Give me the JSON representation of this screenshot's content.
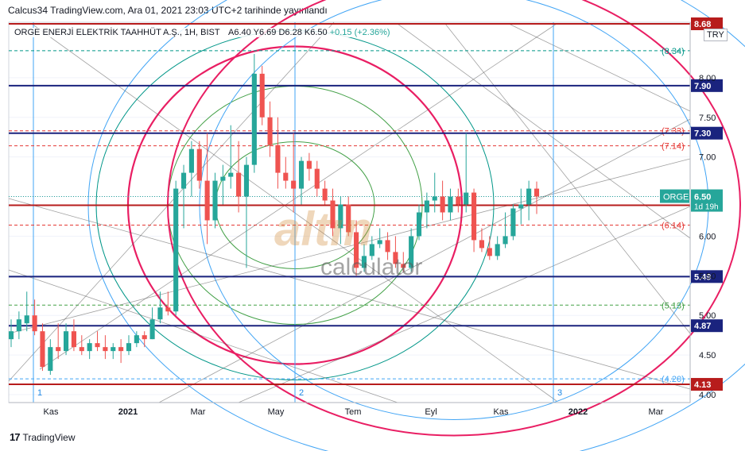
{
  "header": {
    "published": "Calcus34 TradingView.com, Ara 01, 2021 23:03 UTC+2 tarihinde yayınlandı"
  },
  "symbol_bar": {
    "name": "ORGE ENERJİ ELEKTRİK TAAHHÜT A.Ş., 1H, BIST",
    "open": "A6.40",
    "high": "Y6.69",
    "low": "D6.28",
    "close": "K6.50",
    "change": "+0.15 (+2.36%)"
  },
  "currency": "TRY",
  "watermark": {
    "brand": "altın",
    "sub": "calculator"
  },
  "footer": {
    "logo": "17",
    "brand": "TradingView"
  },
  "colors": {
    "up": "#26a69a",
    "down": "#ef5350",
    "red_line": "#b71c1c",
    "navy_line": "#1a237e",
    "ellipse_red": "#e91e63",
    "ellipse_green": "#43a047",
    "ellipse_teal": "#009688",
    "ellipse_blue": "#42a5f5"
  },
  "chart_data": {
    "type": "candlestick",
    "symbol": "ORGE",
    "y_axis_ticks": [
      4.0,
      4.5,
      5.0,
      5.5,
      6.0,
      6.5,
      7.0,
      7.5,
      8.0
    ],
    "y_axis_labels": [
      "4.00",
      "4.50",
      "5.00",
      "5.50",
      "6.00",
      "6.50",
      "7.00",
      "7.50",
      "8.00"
    ],
    "ylim": [
      3.9,
      8.7
    ],
    "x_axis_labels": [
      "Kas",
      "2021",
      "Mar",
      "May",
      "Tem",
      "Eyl",
      "Kas",
      "2022",
      "Mar"
    ],
    "last_price": {
      "label": "ORGE",
      "value": "6.50",
      "countdown": "1d 19h"
    },
    "horizontal_levels": [
      {
        "value": 8.68,
        "label": "8.68",
        "style": "solid",
        "color": "red"
      },
      {
        "value": 7.9,
        "label": "7.90",
        "style": "solid",
        "color": "navy"
      },
      {
        "value": 7.3,
        "label": "7.30",
        "style": "solid",
        "color": "navy"
      },
      {
        "value": 6.39,
        "label": "6.39",
        "style": "solid",
        "color": "red"
      },
      {
        "value": 5.49,
        "label": "5.49",
        "style": "solid",
        "color": "navy"
      },
      {
        "value": 4.87,
        "label": "4.87",
        "style": "solid",
        "color": "navy"
      },
      {
        "value": 4.13,
        "label": "4.13",
        "style": "solid",
        "color": "red"
      }
    ],
    "fib_levels": [
      {
        "value": 8.34,
        "label": "(8.34)",
        "color": "teal"
      },
      {
        "value": 7.33,
        "label": "(7.33)",
        "color": "red"
      },
      {
        "value": 7.14,
        "label": "(7.14)",
        "color": "red"
      },
      {
        "value": 6.14,
        "label": "(6.14)",
        "color": "red"
      },
      {
        "value": 5.13,
        "label": "(5.13)",
        "color": "green"
      },
      {
        "value": 4.2,
        "label": "(4.20)",
        "color": "blue"
      }
    ],
    "vertical_markers": [
      "1",
      "2",
      "3"
    ],
    "candles": [
      {
        "o": 4.7,
        "h": 4.95,
        "l": 4.6,
        "c": 4.8
      },
      {
        "o": 4.8,
        "h": 5.05,
        "l": 4.7,
        "c": 4.95
      },
      {
        "o": 4.9,
        "h": 5.3,
        "l": 4.8,
        "c": 5.0
      },
      {
        "o": 5.0,
        "h": 5.2,
        "l": 4.75,
        "c": 4.8
      },
      {
        "o": 4.8,
        "h": 4.9,
        "l": 4.3,
        "c": 4.35
      },
      {
        "o": 4.3,
        "h": 4.7,
        "l": 4.25,
        "c": 4.6
      },
      {
        "o": 4.6,
        "h": 4.9,
        "l": 4.45,
        "c": 4.55
      },
      {
        "o": 4.55,
        "h": 4.9,
        "l": 4.5,
        "c": 4.8
      },
      {
        "o": 4.8,
        "h": 4.95,
        "l": 4.55,
        "c": 4.6
      },
      {
        "o": 4.6,
        "h": 4.75,
        "l": 4.5,
        "c": 4.55
      },
      {
        "o": 4.55,
        "h": 4.7,
        "l": 4.45,
        "c": 4.65
      },
      {
        "o": 4.65,
        "h": 4.8,
        "l": 4.55,
        "c": 4.6
      },
      {
        "o": 4.6,
        "h": 4.75,
        "l": 4.45,
        "c": 4.55
      },
      {
        "o": 4.55,
        "h": 4.65,
        "l": 4.45,
        "c": 4.6
      },
      {
        "o": 4.6,
        "h": 4.7,
        "l": 4.4,
        "c": 4.55
      },
      {
        "o": 4.55,
        "h": 4.75,
        "l": 4.5,
        "c": 4.65
      },
      {
        "o": 4.65,
        "h": 4.8,
        "l": 4.6,
        "c": 4.75
      },
      {
        "o": 4.75,
        "h": 4.8,
        "l": 4.6,
        "c": 4.7
      },
      {
        "o": 4.7,
        "h": 5.1,
        "l": 4.7,
        "c": 4.95
      },
      {
        "o": 4.95,
        "h": 5.3,
        "l": 4.9,
        "c": 5.1
      },
      {
        "o": 5.1,
        "h": 5.3,
        "l": 5.0,
        "c": 5.05
      },
      {
        "o": 5.05,
        "h": 6.7,
        "l": 5.0,
        "c": 6.6
      },
      {
        "o": 6.6,
        "h": 6.9,
        "l": 6.1,
        "c": 6.8
      },
      {
        "o": 6.8,
        "h": 7.2,
        "l": 6.5,
        "c": 7.1
      },
      {
        "o": 7.1,
        "h": 7.2,
        "l": 6.6,
        "c": 6.7
      },
      {
        "o": 6.7,
        "h": 7.3,
        "l": 5.9,
        "c": 6.2
      },
      {
        "o": 6.2,
        "h": 6.8,
        "l": 6.1,
        "c": 6.7
      },
      {
        "o": 6.7,
        "h": 6.9,
        "l": 6.4,
        "c": 6.75
      },
      {
        "o": 6.75,
        "h": 7.4,
        "l": 6.6,
        "c": 6.8
      },
      {
        "o": 6.8,
        "h": 7.2,
        "l": 6.3,
        "c": 6.5
      },
      {
        "o": 6.5,
        "h": 7.0,
        "l": 5.6,
        "c": 6.9
      },
      {
        "o": 6.9,
        "h": 8.3,
        "l": 6.8,
        "c": 8.05
      },
      {
        "o": 8.05,
        "h": 8.15,
        "l": 7.4,
        "c": 7.5
      },
      {
        "o": 7.5,
        "h": 7.7,
        "l": 7.0,
        "c": 7.15
      },
      {
        "o": 7.15,
        "h": 7.5,
        "l": 6.6,
        "c": 6.8
      },
      {
        "o": 6.8,
        "h": 7.0,
        "l": 6.6,
        "c": 6.7
      },
      {
        "o": 6.7,
        "h": 7.3,
        "l": 6.3,
        "c": 6.6
      },
      {
        "o": 6.6,
        "h": 7.0,
        "l": 6.4,
        "c": 6.95
      },
      {
        "o": 6.95,
        "h": 7.05,
        "l": 6.7,
        "c": 6.85
      },
      {
        "o": 6.85,
        "h": 6.95,
        "l": 6.5,
        "c": 6.6
      },
      {
        "o": 6.6,
        "h": 6.7,
        "l": 6.4,
        "c": 6.45
      },
      {
        "o": 6.45,
        "h": 6.6,
        "l": 6.0,
        "c": 6.1
      },
      {
        "o": 6.1,
        "h": 6.5,
        "l": 5.9,
        "c": 6.4
      },
      {
        "o": 6.4,
        "h": 6.5,
        "l": 6.0,
        "c": 6.05
      },
      {
        "o": 6.05,
        "h": 6.2,
        "l": 5.5,
        "c": 5.6
      },
      {
        "o": 5.6,
        "h": 5.9,
        "l": 5.55,
        "c": 5.75
      },
      {
        "o": 5.75,
        "h": 6.0,
        "l": 5.7,
        "c": 5.9
      },
      {
        "o": 5.9,
        "h": 6.1,
        "l": 5.85,
        "c": 5.95
      },
      {
        "o": 5.95,
        "h": 6.05,
        "l": 5.7,
        "c": 5.8
      },
      {
        "o": 5.8,
        "h": 6.0,
        "l": 5.6,
        "c": 5.65
      },
      {
        "o": 5.65,
        "h": 5.8,
        "l": 5.55,
        "c": 5.6
      },
      {
        "o": 5.6,
        "h": 6.1,
        "l": 5.55,
        "c": 6.0
      },
      {
        "o": 6.0,
        "h": 6.4,
        "l": 5.95,
        "c": 6.3
      },
      {
        "o": 6.3,
        "h": 6.55,
        "l": 6.1,
        "c": 6.45
      },
      {
        "o": 6.45,
        "h": 6.8,
        "l": 6.3,
        "c": 6.5
      },
      {
        "o": 6.5,
        "h": 6.7,
        "l": 6.2,
        "c": 6.3
      },
      {
        "o": 6.3,
        "h": 6.6,
        "l": 6.2,
        "c": 6.5
      },
      {
        "o": 6.5,
        "h": 6.6,
        "l": 6.3,
        "c": 6.4
      },
      {
        "o": 6.4,
        "h": 7.3,
        "l": 6.3,
        "c": 6.55
      },
      {
        "o": 6.55,
        "h": 6.6,
        "l": 5.8,
        "c": 5.95
      },
      {
        "o": 5.95,
        "h": 6.1,
        "l": 5.8,
        "c": 5.85
      },
      {
        "o": 5.85,
        "h": 6.0,
        "l": 5.7,
        "c": 5.75
      },
      {
        "o": 5.75,
        "h": 6.0,
        "l": 5.7,
        "c": 5.9
      },
      {
        "o": 5.9,
        "h": 6.3,
        "l": 5.85,
        "c": 6.0
      },
      {
        "o": 6.0,
        "h": 6.4,
        "l": 5.95,
        "c": 6.35
      },
      {
        "o": 6.35,
        "h": 6.6,
        "l": 6.15,
        "c": 6.4
      },
      {
        "o": 6.4,
        "h": 6.7,
        "l": 6.2,
        "c": 6.6
      },
      {
        "o": 6.6,
        "h": 6.69,
        "l": 6.28,
        "c": 6.5
      }
    ]
  }
}
